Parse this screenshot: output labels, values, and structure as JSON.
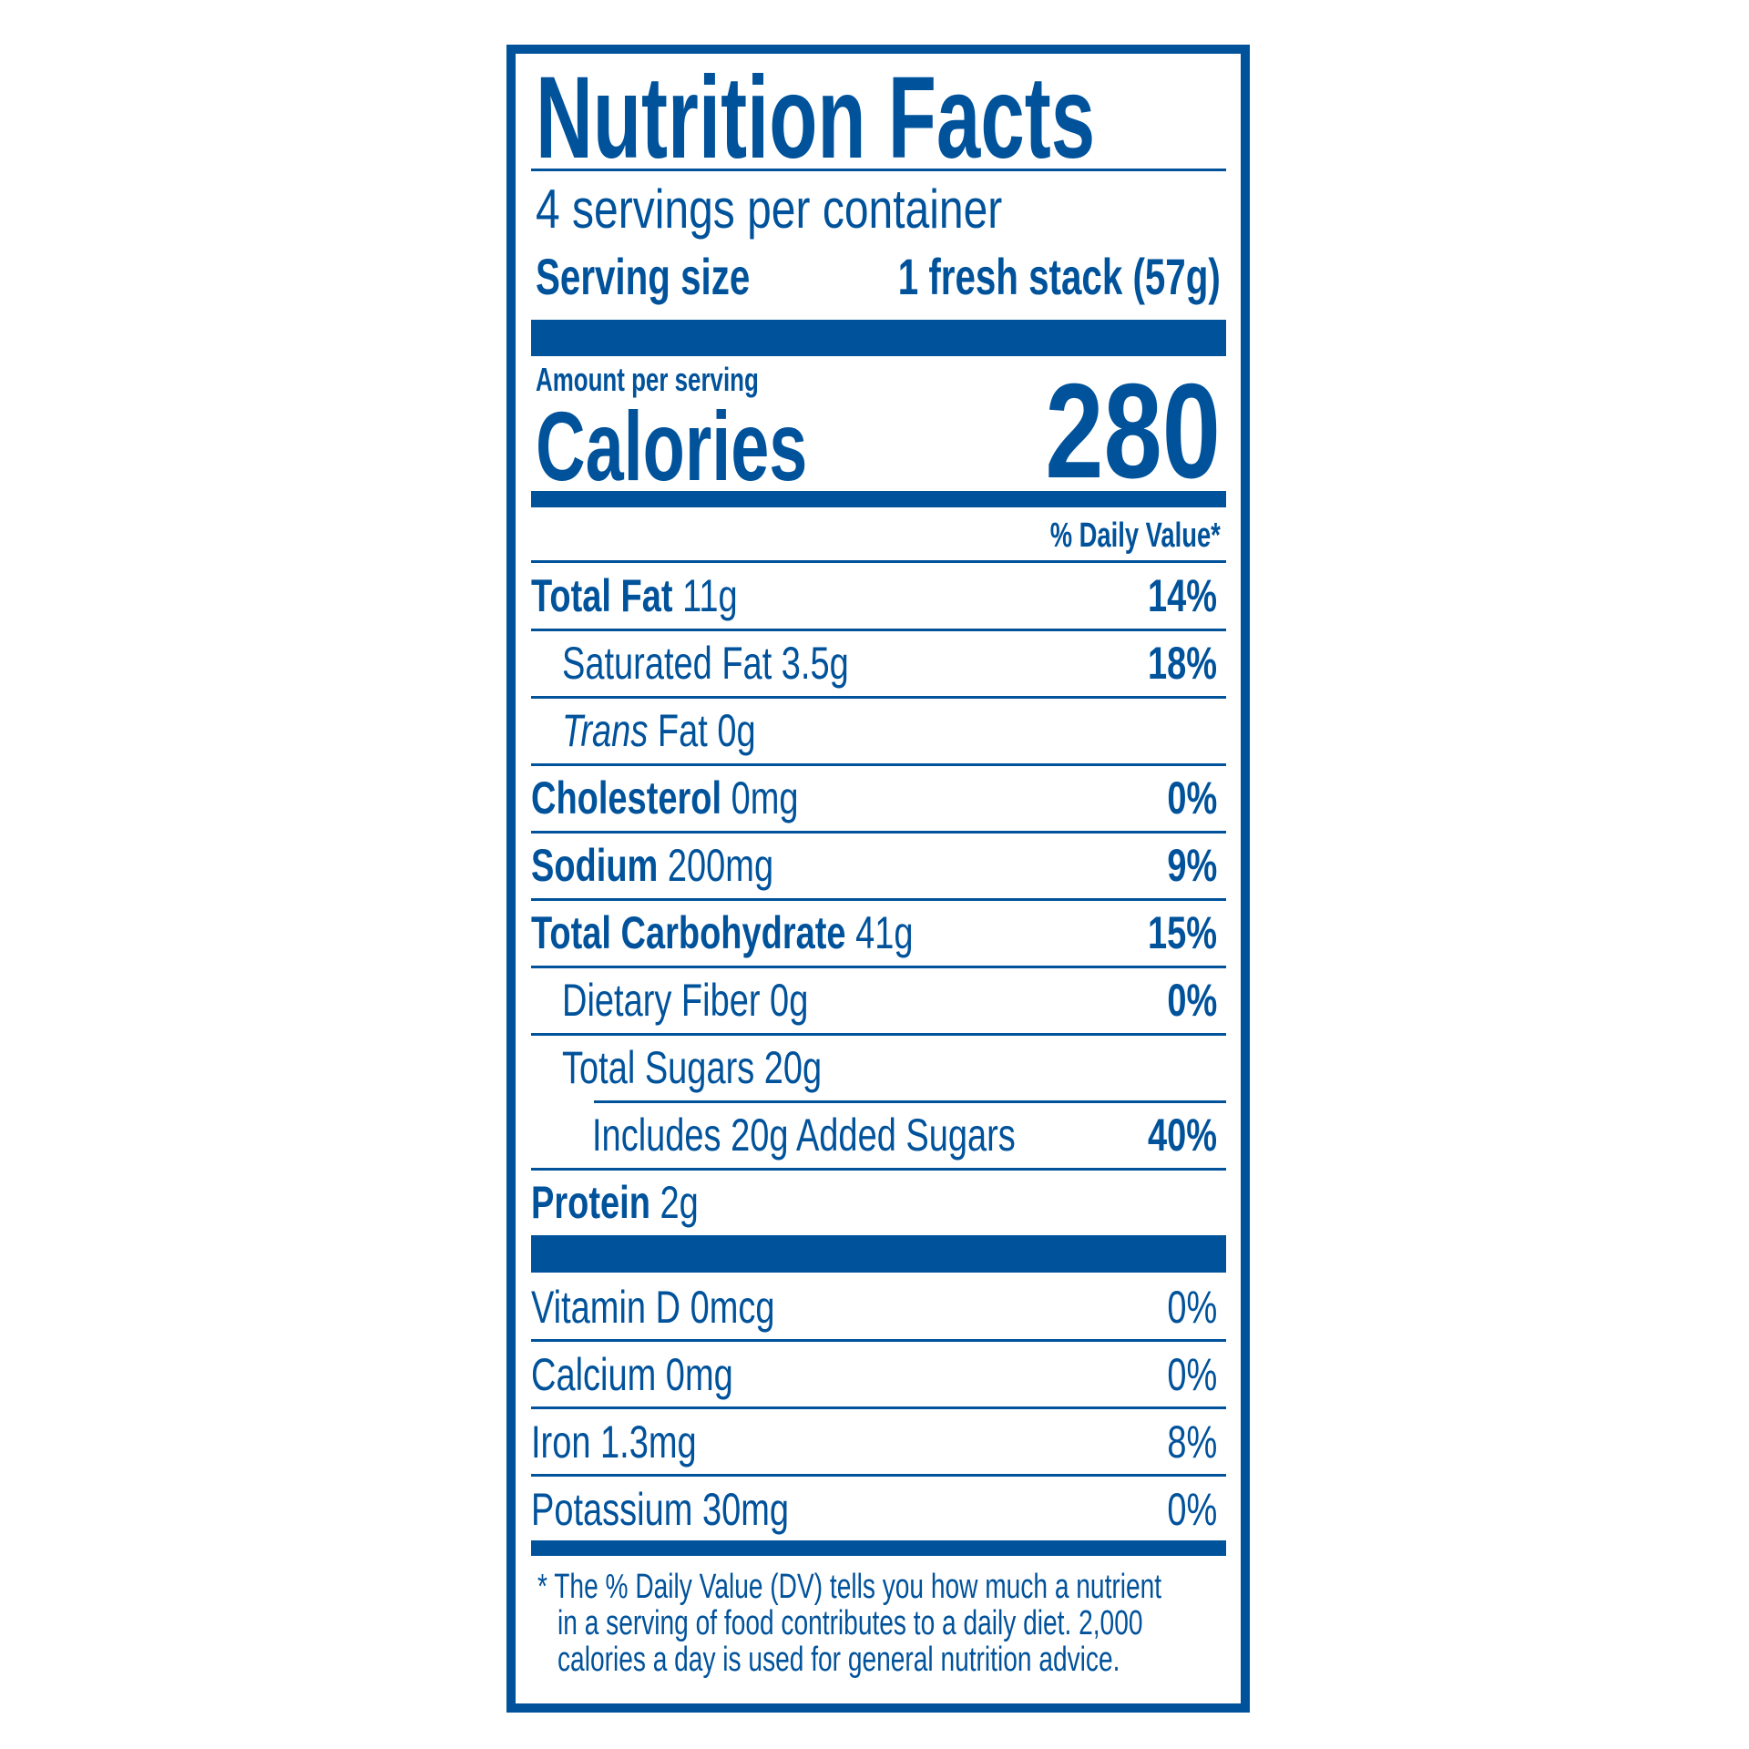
{
  "label": {
    "title": "Nutrition Facts",
    "servings_per_container": "4 servings per container",
    "serving_size_label": "Serving size",
    "serving_size_value": "1 fresh stack (57g)",
    "amount_per_serving": "Amount per serving",
    "calories_label": "Calories",
    "calories_value": "280",
    "daily_value_header": "% Daily Value*",
    "nutrients": [
      {
        "name": "Total Fat",
        "amount": "11g",
        "dv": "14%"
      },
      {
        "name": "Saturated Fat 3.5g",
        "amount": "",
        "dv": "18%"
      },
      {
        "name_italic": "Trans",
        "name": "Fat 0g",
        "amount": "",
        "dv": ""
      },
      {
        "name": "Cholesterol",
        "amount": "0mg",
        "dv": "0%"
      },
      {
        "name": "Sodium",
        "amount": "200mg",
        "dv": "9%"
      },
      {
        "name": "Total Carbohydrate",
        "amount": "41g",
        "dv": "15%"
      },
      {
        "name": "Dietary Fiber 0g",
        "amount": "",
        "dv": "0%"
      },
      {
        "name": "Total Sugars 20g",
        "amount": "",
        "dv": ""
      },
      {
        "name": "Includes 20g Added Sugars",
        "amount": "",
        "dv": "40%"
      },
      {
        "name": "Protein",
        "amount": "2g",
        "dv": ""
      }
    ],
    "vitamins": [
      {
        "name": "Vitamin D 0mcg",
        "dv": "0%"
      },
      {
        "name": "Calcium 0mg",
        "dv": "0%"
      },
      {
        "name": "Iron 1.3mg",
        "dv": "8%"
      },
      {
        "name": "Potassium 30mg",
        "dv": "0%"
      }
    ],
    "footnote_lines": [
      "* The % Daily Value (DV) tells you how much a nutrient",
      "in a serving of food contributes to a daily diet. 2,000",
      "calories a day is used for general nutrition advice."
    ],
    "color": "#00529B"
  }
}
